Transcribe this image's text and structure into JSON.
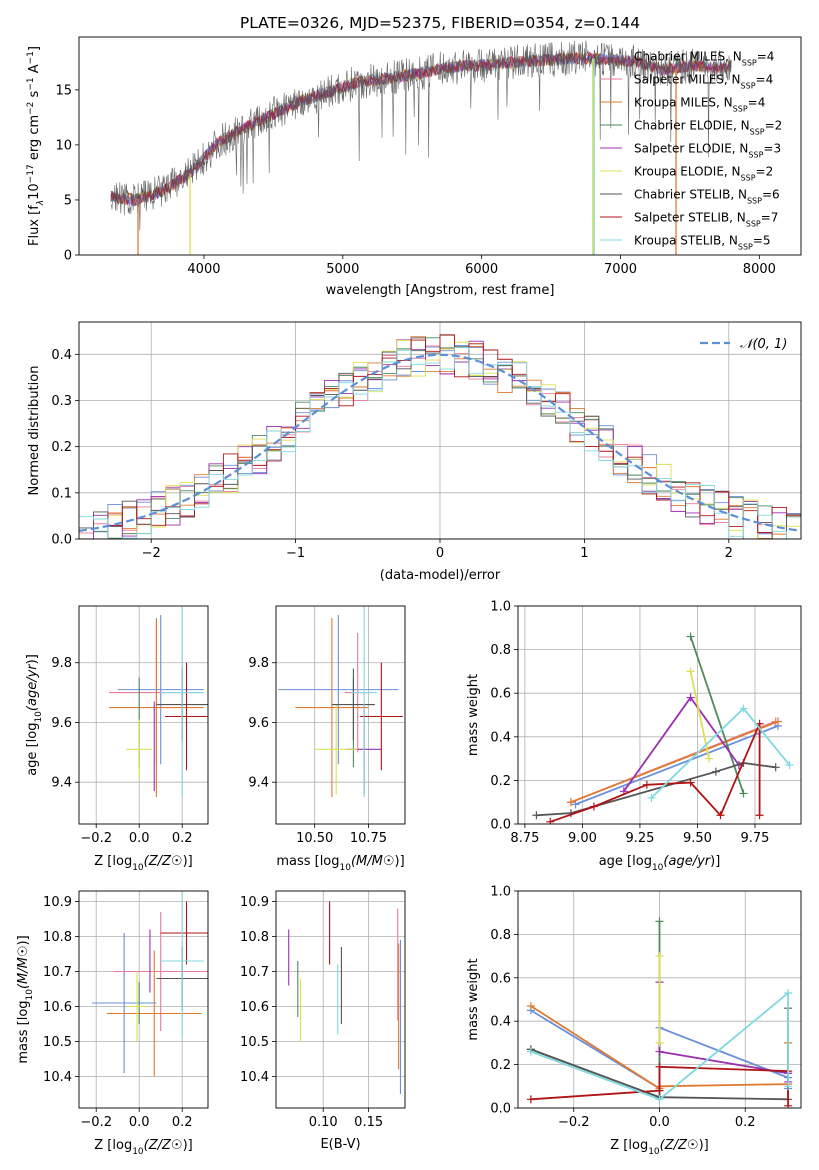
{
  "colors": {
    "chabrier_miles": "#6a8fdc",
    "salpeter_miles": "#e87a9a",
    "kroupa_miles": "#e07a30",
    "chabrier_elodie": "#4e8a5a",
    "salpeter_elodie": "#9b2fb0",
    "kroupa_elodie": "#dde055",
    "chabrier_stelib": "#555555",
    "salpeter_stelib": "#b01515",
    "kroupa_stelib": "#80d8e0",
    "gaussian": "#5b8fd9"
  },
  "chart_data": [
    {
      "id": "spectrum",
      "type": "line",
      "title": "PLATE=0326, MJD=52375, FIBERID=0354, z=0.144",
      "xlabel": "wavelength [Angstrom, rest frame]",
      "ylabel": "Flux [f_λ10^-17 erg cm^-2 s^-1 A^-1]",
      "xlim": [
        3100,
        8300
      ],
      "ylim": [
        0,
        19.8
      ],
      "xticks": [
        "4000",
        "5000",
        "6000",
        "7000",
        "8000"
      ],
      "yticks": [
        "0",
        "5",
        "10",
        "15"
      ],
      "grid": false,
      "legend": [
        {
          "label": "Chabrier MILES, N",
          "sub": "SSP",
          "tail": "=4",
          "color": "chabrier_miles"
        },
        {
          "label": "Salpeter MILES, N",
          "sub": "SSP",
          "tail": "=4",
          "color": "salpeter_miles"
        },
        {
          "label": "Kroupa MILES, N",
          "sub": "SSP",
          "tail": "=4",
          "color": "kroupa_miles"
        },
        {
          "label": "Chabrier ELODIE, N",
          "sub": "SSP",
          "tail": "=2",
          "color": "chabrier_elodie"
        },
        {
          "label": "Salpeter ELODIE, N",
          "sub": "SSP",
          "tail": "=3",
          "color": "salpeter_elodie"
        },
        {
          "label": "Kroupa ELODIE, N",
          "sub": "SSP",
          "tail": "=2",
          "color": "kroupa_elodie"
        },
        {
          "label": "Chabrier STELIB, N",
          "sub": "SSP",
          "tail": "=6",
          "color": "chabrier_stelib"
        },
        {
          "label": "Salpeter STELIB, N",
          "sub": "SSP",
          "tail": "=7",
          "color": "salpeter_stelib"
        },
        {
          "label": "Kroupa STELIB, N",
          "sub": "SSP",
          "tail": "=5",
          "color": "kroupa_stelib"
        }
      ],
      "continuum": {
        "x": [
          3330,
          3500,
          3700,
          3900,
          4100,
          4300,
          4500,
          4700,
          4900,
          5100,
          5300,
          5500,
          5700,
          5900,
          6100,
          6300,
          6500,
          6700,
          6900,
          7100,
          7300,
          7500,
          7700,
          7800
        ],
        "y": [
          5.3,
          5.0,
          5.8,
          7.4,
          10.2,
          11.6,
          12.8,
          14.0,
          14.8,
          15.7,
          16.0,
          16.4,
          16.9,
          17.2,
          17.3,
          17.6,
          17.7,
          17.9,
          17.8,
          17.6,
          16.8,
          17.2,
          17.0,
          17.2
        ]
      },
      "model_gaps": [
        {
          "x": 3525,
          "color": "kroupa_miles"
        },
        {
          "x": 3900,
          "color": "kroupa_elodie"
        },
        {
          "x": 6800,
          "color": "kroupa_elodie"
        },
        {
          "x": 6810,
          "color": "kroupa_stelib"
        },
        {
          "x": 7400,
          "color": "kroupa_miles"
        }
      ]
    },
    {
      "id": "residuals",
      "type": "histogram",
      "xlabel": "(data-model)/error",
      "ylabel": "Normed distribution",
      "xlim": [
        -2.5,
        2.5
      ],
      "ylim": [
        0,
        0.47
      ],
      "xticks": [
        "−2",
        "−1",
        "0",
        "1",
        "2"
      ],
      "yticks": [
        "0.0",
        "0.1",
        "0.2",
        "0.3",
        "0.4"
      ],
      "grid": true,
      "legend": [
        {
          "label": "𝒩(0, 1)",
          "style": "dashed",
          "color": "gaussian"
        }
      ],
      "bin_width": 0.1,
      "bins_from": -2.5
    },
    {
      "id": "z_age",
      "type": "scatter",
      "xlabel": "Z [log10(Z/Z☉)]",
      "ylabel": "age  [log10(age/yr)]",
      "xlim": [
        -0.28,
        0.32
      ],
      "ylim": [
        9.26,
        9.99
      ],
      "xticks": [
        "−0.2",
        "0.0",
        "0.2"
      ],
      "yticks": [
        "9.4",
        "9.6",
        "9.8"
      ],
      "grid": true,
      "points": [
        {
          "x": 0.1,
          "y": 9.71,
          "xe": 0.2,
          "ye": 0.25,
          "color": "chabrier_miles"
        },
        {
          "x": 0.08,
          "y": 9.7,
          "xe": 0.22,
          "ye": 0.24,
          "color": "salpeter_miles"
        },
        {
          "x": 0.08,
          "y": 9.65,
          "xe": 0.22,
          "ye": 0.3,
          "color": "kroupa_miles"
        },
        {
          "x": 0.0,
          "y": 9.6,
          "xe": 0.0,
          "ye": 0.15,
          "color": "chabrier_elodie"
        },
        {
          "x": 0.07,
          "y": 9.52,
          "xe": 0.0,
          "ye": 0.15,
          "color": "salpeter_elodie"
        },
        {
          "x": 0.0,
          "y": 9.51,
          "xe": 0.06,
          "ye": 0.1,
          "color": "kroupa_elodie"
        },
        {
          "x": 0.2,
          "y": 9.66,
          "xe": 0.12,
          "ye": 0.12,
          "color": "chabrier_stelib"
        },
        {
          "x": 0.22,
          "y": 9.62,
          "xe": 0.1,
          "ye": 0.18,
          "color": "salpeter_stelib"
        },
        {
          "x": 0.2,
          "y": 9.7,
          "xe": 0.1,
          "ye": 0.35,
          "color": "kroupa_stelib"
        }
      ]
    },
    {
      "id": "mass_age",
      "type": "scatter",
      "xlabel": "mass [log10(M/M☉)]",
      "ylabel": "",
      "xlim": [
        10.32,
        10.92
      ],
      "ylim": [
        9.26,
        9.99
      ],
      "xticks": [
        "10.50",
        "10.75"
      ],
      "yticks": [
        "9.4",
        "9.6",
        "9.8"
      ],
      "grid": true,
      "points": [
        {
          "x": 10.61,
          "y": 9.71,
          "xe": 0.28,
          "ye": 0.25,
          "color": "chabrier_miles"
        },
        {
          "x": 10.7,
          "y": 9.7,
          "xe": 0.06,
          "ye": 0.2,
          "color": "salpeter_miles"
        },
        {
          "x": 10.58,
          "y": 9.65,
          "xe": 0.17,
          "ye": 0.3,
          "color": "kroupa_miles"
        },
        {
          "x": 10.68,
          "y": 9.6,
          "xe": 0.0,
          "ye": 0.15,
          "color": "chabrier_elodie"
        },
        {
          "x": 10.73,
          "y": 9.51,
          "xe": 0.08,
          "ye": 0.15,
          "color": "salpeter_elodie"
        },
        {
          "x": 10.6,
          "y": 9.51,
          "xe": 0.1,
          "ye": 0.15,
          "color": "kroupa_elodie"
        },
        {
          "x": 10.68,
          "y": 9.66,
          "xe": 0.1,
          "ye": 0.12,
          "color": "chabrier_stelib"
        },
        {
          "x": 10.81,
          "y": 9.62,
          "xe": 0.1,
          "ye": 0.18,
          "color": "salpeter_stelib"
        },
        {
          "x": 10.73,
          "y": 9.7,
          "xe": 0.06,
          "ye": 0.35,
          "color": "kroupa_stelib"
        }
      ]
    },
    {
      "id": "age_weight",
      "type": "line",
      "xlabel": "age  [log10(age/yr)]",
      "ylabel": "mass weight",
      "xlim": [
        8.72,
        9.95
      ],
      "ylim": [
        0,
        1.0
      ],
      "xticks": [
        "8.75",
        "9.00",
        "9.25",
        "9.50",
        "9.75"
      ],
      "yticks": [
        "0.0",
        "0.2",
        "0.4",
        "0.6",
        "0.8",
        "1.0"
      ],
      "grid": true,
      "series": [
        {
          "color": "chabrier_miles",
          "x": [
            8.97,
            9.85
          ],
          "y": [
            0.09,
            0.45
          ]
        },
        {
          "color": "salpeter_miles",
          "x": [
            8.95,
            9.84
          ],
          "y": [
            0.1,
            0.47
          ]
        },
        {
          "color": "kroupa_miles",
          "x": [
            8.95,
            9.85
          ],
          "y": [
            0.1,
            0.47
          ]
        },
        {
          "color": "chabrier_elodie",
          "x": [
            9.47,
            9.7
          ],
          "y": [
            0.86,
            0.14
          ]
        },
        {
          "color": "salpeter_elodie",
          "x": [
            9.18,
            9.47,
            9.68
          ],
          "y": [
            0.15,
            0.58,
            0.27
          ]
        },
        {
          "color": "kroupa_elodie",
          "x": [
            9.47,
            9.55
          ],
          "y": [
            0.7,
            0.3
          ]
        },
        {
          "color": "chabrier_stelib",
          "x": [
            8.8,
            8.95,
            9.58,
            9.7,
            9.84
          ],
          "y": [
            0.04,
            0.05,
            0.24,
            0.28,
            0.26
          ]
        },
        {
          "color": "salpeter_stelib",
          "x": [
            8.86,
            9.05,
            9.28,
            9.47,
            9.6,
            9.77,
            9.77
          ],
          "y": [
            0.01,
            0.08,
            0.18,
            0.19,
            0.04,
            0.46,
            0.04
          ]
        },
        {
          "color": "kroupa_stelib",
          "x": [
            9.3,
            9.7,
            9.9
          ],
          "y": [
            0.12,
            0.53,
            0.27
          ]
        }
      ]
    },
    {
      "id": "z_mass",
      "type": "scatter",
      "xlabel": "Z [log10(Z/Z☉)]",
      "ylabel": "mass [log10(M/M☉)]",
      "xlim": [
        -0.28,
        0.32
      ],
      "ylim": [
        10.31,
        10.93
      ],
      "xticks": [
        "−0.2",
        "0.0",
        "0.2"
      ],
      "yticks": [
        "10.4",
        "10.5",
        "10.6",
        "10.7",
        "10.8",
        "10.9"
      ],
      "grid": true,
      "points": [
        {
          "x": -0.07,
          "y": 10.61,
          "xe": 0.15,
          "ye": 0.2,
          "color": "chabrier_miles"
        },
        {
          "x": 0.1,
          "y": 10.7,
          "xe": 0.22,
          "ye": 0.17,
          "color": "salpeter_miles"
        },
        {
          "x": 0.07,
          "y": 10.58,
          "xe": 0.22,
          "ye": 0.18,
          "color": "kroupa_miles"
        },
        {
          "x": 0.0,
          "y": 10.61,
          "xe": 0.0,
          "ye": 0.06,
          "color": "chabrier_elodie"
        },
        {
          "x": 0.05,
          "y": 10.73,
          "xe": 0.0,
          "ye": 0.09,
          "color": "salpeter_elodie"
        },
        {
          "x": -0.01,
          "y": 10.6,
          "xe": 0.05,
          "ye": 0.1,
          "color": "kroupa_elodie"
        },
        {
          "x": 0.2,
          "y": 10.68,
          "xe": 0.12,
          "ye": 0.09,
          "color": "chabrier_stelib"
        },
        {
          "x": 0.22,
          "y": 10.81,
          "xe": 0.12,
          "ye": 0.09,
          "color": "salpeter_stelib"
        },
        {
          "x": 0.2,
          "y": 10.73,
          "xe": 0.1,
          "ye": 0.22,
          "color": "kroupa_stelib"
        }
      ]
    },
    {
      "id": "ebv_mass",
      "type": "scatter",
      "xlabel": "E(B-V)",
      "ylabel": "",
      "xlim": [
        0.048,
        0.19
      ],
      "ylim": [
        10.31,
        10.93
      ],
      "xticks": [
        "0.10",
        "0.15"
      ],
      "yticks": [
        "10.4",
        "10.5",
        "10.6",
        "10.7",
        "10.8",
        "10.9"
      ],
      "grid": true,
      "points": [
        {
          "x": 0.185,
          "y": 10.57,
          "ye": 0.22,
          "color": "chabrier_miles"
        },
        {
          "x": 0.182,
          "y": 10.72,
          "ye": 0.16,
          "color": "salpeter_miles"
        },
        {
          "x": 0.183,
          "y": 10.6,
          "ye": 0.18,
          "color": "kroupa_miles"
        },
        {
          "x": 0.072,
          "y": 10.65,
          "ye": 0.08,
          "color": "chabrier_elodie"
        },
        {
          "x": 0.062,
          "y": 10.74,
          "ye": 0.08,
          "color": "salpeter_elodie"
        },
        {
          "x": 0.075,
          "y": 10.59,
          "ye": 0.09,
          "color": "kroupa_elodie"
        },
        {
          "x": 0.12,
          "y": 10.66,
          "ye": 0.11,
          "color": "chabrier_stelib"
        },
        {
          "x": 0.107,
          "y": 10.81,
          "ye": 0.09,
          "color": "salpeter_stelib"
        },
        {
          "x": 0.116,
          "y": 10.62,
          "ye": 0.1,
          "color": "kroupa_stelib"
        }
      ]
    },
    {
      "id": "z_weight",
      "type": "line",
      "xlabel": "Z [log10(Z/Z☉)]",
      "ylabel": "mass weight",
      "xlim": [
        -0.33,
        0.33
      ],
      "ylim": [
        0,
        1.0
      ],
      "xticks": [
        "−0.2",
        "0.0",
        "0.2"
      ],
      "yticks": [
        "0.0",
        "0.2",
        "0.4",
        "0.6",
        "0.8",
        "1.0"
      ],
      "grid": true,
      "series": [
        {
          "color": "chabrier_miles",
          "x": [
            -0.3,
            0.0,
            0.0,
            0.3,
            0.3
          ],
          "y": [
            0.45,
            0.09,
            0.37,
            0.14,
            0.09
          ]
        },
        {
          "color": "kroupa_miles",
          "x": [
            -0.3,
            0.0,
            0.0,
            0.3,
            0.3
          ],
          "y": [
            0.47,
            0.09,
            0.1,
            0.11,
            0.3
          ]
        },
        {
          "color": "chabrier_elodie",
          "x": [
            -0.3,
            0.0,
            0.0,
            0.0
          ],
          "y": [
            0.27,
            0.05,
            0.86,
            0.05
          ]
        },
        {
          "color": "salpeter_elodie",
          "x": [
            0.0,
            0.0,
            0.3,
            0.3
          ],
          "y": [
            0.58,
            0.26,
            0.16,
            0.12
          ]
        },
        {
          "color": "kroupa_elodie",
          "x": [
            0.0,
            0.0
          ],
          "y": [
            0.7,
            0.3
          ]
        },
        {
          "color": "chabrier_stelib",
          "x": [
            -0.3,
            0.0,
            0.3,
            0.3
          ],
          "y": [
            0.27,
            0.05,
            0.04,
            0.46
          ]
        },
        {
          "color": "salpeter_stelib",
          "x": [
            -0.3,
            0.0,
            0.0,
            0.3,
            0.3
          ],
          "y": [
            0.04,
            0.08,
            0.19,
            0.17,
            0.01
          ]
        },
        {
          "color": "kroupa_stelib",
          "x": [
            -0.3,
            0.0,
            0.3,
            0.3
          ],
          "y": [
            0.26,
            0.04,
            0.53,
            0.1
          ]
        }
      ]
    }
  ]
}
